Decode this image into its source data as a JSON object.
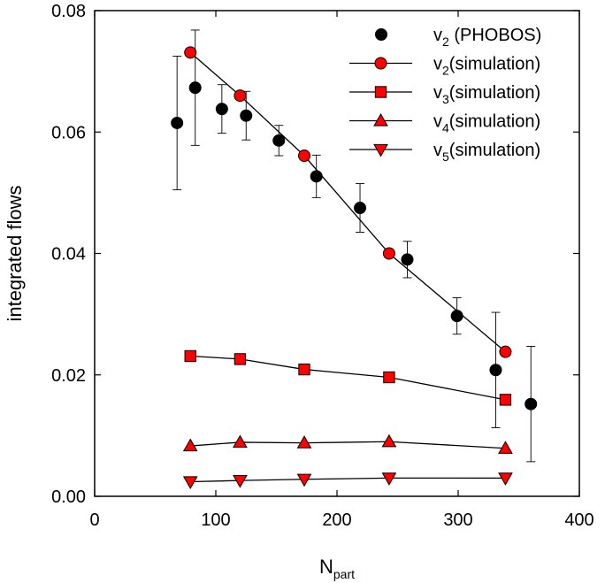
{
  "chart_data": {
    "type": "line",
    "xlabel": "N",
    "xlabel_subscript": "part",
    "ylabel": "integrated flows",
    "xlim": [
      0,
      400
    ],
    "ylim": [
      0.0,
      0.08
    ],
    "xticks": [
      0,
      100,
      200,
      300,
      400
    ],
    "xtick_labels": [
      "0",
      "100",
      "200",
      "300",
      "400"
    ],
    "yticks": [
      0.0,
      0.02,
      0.04,
      0.06,
      0.08
    ],
    "ytick_labels": [
      "0.00",
      "0.02",
      "0.04",
      "0.06",
      "0.08"
    ],
    "grid": false,
    "legend_position": "top-right",
    "series": [
      {
        "name": "v₂ (PHOBOS)",
        "legend_main": "v",
        "legend_sub": "2",
        "legend_rest": " (PHOBOS)",
        "marker": "circle",
        "color": "#000000",
        "line": false,
        "x": [
          68,
          83,
          105,
          125,
          152,
          183,
          219,
          258,
          299,
          331,
          360
        ],
        "y": [
          0.0615,
          0.0673,
          0.0638,
          0.0627,
          0.0586,
          0.0527,
          0.0475,
          0.039,
          0.0297,
          0.0208,
          0.0152
        ],
        "err_lo": [
          0.011,
          0.0095,
          0.004,
          0.004,
          0.0025,
          0.0035,
          0.004,
          0.003,
          0.003,
          0.0095,
          0.0095
        ],
        "err_hi": [
          0.011,
          0.0095,
          0.004,
          0.004,
          0.0025,
          0.0035,
          0.004,
          0.003,
          0.003,
          0.0095,
          0.0095
        ]
      },
      {
        "name": "v2(simulation)",
        "legend_main": "v",
        "legend_sub": "2",
        "legend_rest": "(simulation)",
        "marker": "circle",
        "color": "#ff0000",
        "line": true,
        "x": [
          79,
          120,
          173,
          243,
          339
        ],
        "y": [
          0.0731,
          0.066,
          0.0561,
          0.04,
          0.0238
        ]
      },
      {
        "name": "v3(simulation)",
        "legend_main": "v",
        "legend_sub": "3",
        "legend_rest": "(simulation)",
        "marker": "square",
        "color": "#ff0000",
        "line": true,
        "x": [
          79,
          120,
          173,
          243,
          339
        ],
        "y": [
          0.0231,
          0.0226,
          0.0209,
          0.0196,
          0.0159
        ]
      },
      {
        "name": "v4(simulation)",
        "legend_main": "v",
        "legend_sub": "4",
        "legend_rest": "(simulation)",
        "marker": "triangle-up",
        "color": "#ff0000",
        "line": true,
        "x": [
          79,
          120,
          173,
          243,
          339
        ],
        "y": [
          0.0083,
          0.0089,
          0.0088,
          0.009,
          0.0079
        ]
      },
      {
        "name": "v5(simulation)",
        "legend_main": "v",
        "legend_sub": "5",
        "legend_rest": "(simulation)",
        "marker": "triangle-down",
        "color": "#ff0000",
        "line": true,
        "x": [
          79,
          120,
          173,
          243,
          339
        ],
        "y": [
          0.0024,
          0.0026,
          0.0028,
          0.003,
          0.003
        ]
      }
    ]
  }
}
